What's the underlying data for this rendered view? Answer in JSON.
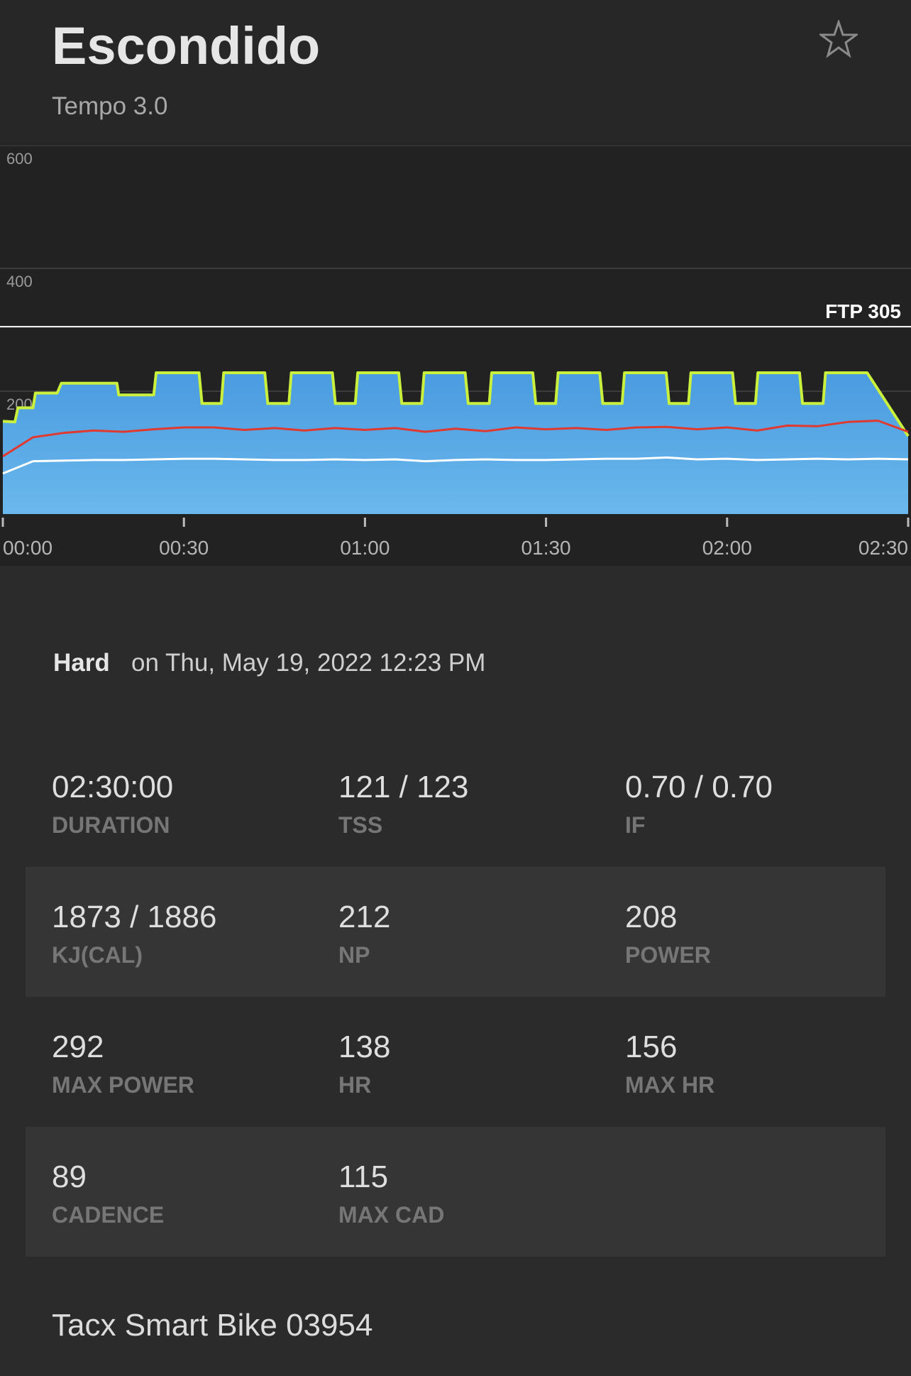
{
  "header": {
    "title": "Escondido",
    "subtitle": "Tempo 3.0"
  },
  "chart_data": {
    "type": "line",
    "xlim": [
      0,
      150
    ],
    "xticks": [
      {
        "value": 0,
        "label": "00:00"
      },
      {
        "value": 30,
        "label": "00:30"
      },
      {
        "value": 60,
        "label": "01:00"
      },
      {
        "value": 90,
        "label": "01:30"
      },
      {
        "value": 120,
        "label": "02:00"
      },
      {
        "value": 150,
        "label": "02:30"
      }
    ],
    "ylim": [
      0,
      600
    ],
    "yticks": [
      200,
      400,
      600
    ],
    "grid": true,
    "ftp": {
      "value": 305,
      "label": "FTP 305"
    },
    "series": [
      {
        "color": "#c8f03c",
        "fill": "#4a9fe3",
        "x": [
          0,
          2,
          2.5,
          5,
          5.4,
          9,
          9.7,
          18.9,
          19.2,
          25,
          25.4,
          32.5,
          33,
          36.2,
          36.6,
          43.4,
          43.9,
          47.4,
          47.8,
          54.6,
          55.1,
          58.4,
          58.8,
          65.6,
          66.1,
          69.4,
          69.8,
          76.6,
          77.1,
          80.6,
          81,
          87.8,
          88.3,
          91.6,
          92,
          98.9,
          99.4,
          102.6,
          103,
          109.9,
          110.4,
          113.6,
          114,
          120.9,
          121.4,
          124.7,
          125.1,
          132,
          132.5,
          135.9,
          136.3,
          143.2,
          150
        ],
        "values": [
          151,
          150,
          173,
          173,
          197,
          197,
          213,
          213,
          194,
          194,
          230,
          230,
          180,
          180,
          230,
          230,
          180,
          180,
          230,
          230,
          180,
          180,
          230,
          230,
          180,
          180,
          230,
          230,
          180,
          180,
          230,
          230,
          180,
          180,
          230,
          230,
          180,
          180,
          230,
          230,
          180,
          180,
          230,
          230,
          180,
          180,
          230,
          230,
          180,
          180,
          230,
          230,
          127
        ]
      },
      {
        "color": "#e0392f",
        "x": [
          0,
          5,
          10,
          15,
          20,
          25,
          30,
          35,
          40,
          45,
          50,
          55,
          60,
          65,
          70,
          75,
          80,
          85,
          90,
          95,
          100,
          105,
          110,
          115,
          120,
          125,
          130,
          135,
          140,
          145,
          150
        ],
        "values": [
          94,
          125,
          132,
          136,
          134,
          138,
          141,
          141,
          137,
          140,
          136,
          140,
          137,
          140,
          134,
          139,
          135,
          141,
          138,
          140,
          137,
          141,
          142,
          138,
          141,
          136,
          144,
          143,
          150,
          152,
          134
        ]
      },
      {
        "color": "#ffffff",
        "x": [
          0,
          5,
          10,
          15,
          20,
          25,
          30,
          35,
          40,
          45,
          50,
          55,
          60,
          65,
          70,
          75,
          80,
          85,
          90,
          95,
          100,
          105,
          110,
          115,
          120,
          125,
          130,
          135,
          140,
          145,
          150
        ],
        "values": [
          66,
          86,
          87,
          88,
          88,
          89,
          90,
          90,
          89,
          88,
          88,
          89,
          88,
          89,
          86,
          88,
          89,
          88,
          88,
          89,
          90,
          90,
          92,
          89,
          90,
          88,
          89,
          90,
          89,
          90,
          89
        ]
      }
    ]
  },
  "workout": {
    "difficulty": "Hard",
    "date": "on Thu, May 19, 2022 12:23 PM"
  },
  "stats": [
    [
      {
        "value": "02:30:00",
        "label": "DURATION"
      },
      {
        "value": "121 / 123",
        "label": "TSS"
      },
      {
        "value": "0.70 / 0.70",
        "label": "IF"
      }
    ],
    [
      {
        "value": "1873 / 1886",
        "label": "KJ(CAL)"
      },
      {
        "value": "212",
        "label": "NP"
      },
      {
        "value": "208",
        "label": "POWER"
      }
    ],
    [
      {
        "value": "292",
        "label": "MAX POWER"
      },
      {
        "value": "138",
        "label": "HR"
      },
      {
        "value": "156",
        "label": "MAX HR"
      }
    ],
    [
      {
        "value": "89",
        "label": "CADENCE"
      },
      {
        "value": "115",
        "label": "MAX CAD"
      }
    ]
  ],
  "device": "Tacx Smart Bike 03954"
}
